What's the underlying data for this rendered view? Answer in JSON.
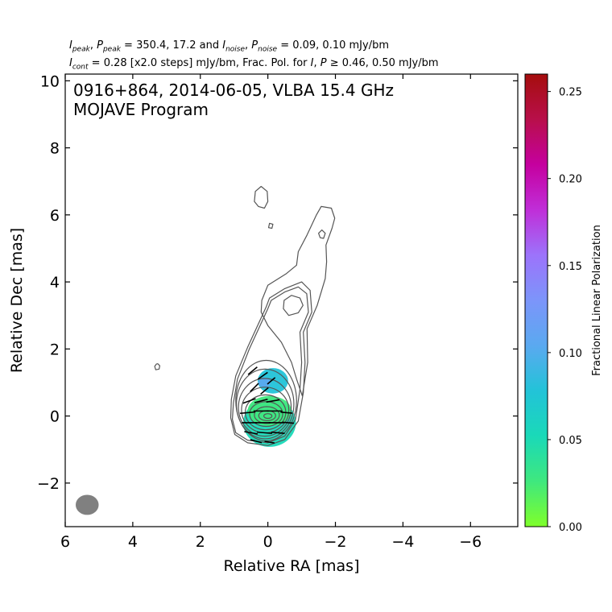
{
  "header": {
    "line1": {
      "peak_sym": "I",
      "peak_sub": "peak",
      "ppeak_sym": "P",
      "ppeak_sub": "peak",
      "peak_vals": " = 350.4, 17.2 and ",
      "noise_sym": "I",
      "noise_sub": "noise",
      "pnoise_sym": "P",
      "pnoise_sub": "noise",
      "noise_vals": " = 0.09, 0.10 mJy/bm"
    },
    "line2": {
      "cont_sym": "I",
      "cont_sub": "cont",
      "cont_text": " = 0.28 [x2.0 steps] mJy/bm, Frac. Pol. for ",
      "i_sym": "I",
      "p_sym": "P",
      "thresh_text": " ≥ 0.46, 0.50 mJy/bm"
    }
  },
  "chart_data": {
    "type": "contour",
    "title_line1": "0916+864, 2014-06-05, VLBA 15.4 GHz",
    "title_line2": "MOJAVE Program",
    "xlabel": "Relative RA [mas]",
    "ylabel": "Relative Dec [mas]",
    "xlim": [
      6.0,
      -7.4
    ],
    "ylim": [
      -3.3,
      10.2
    ],
    "xticks": [
      6,
      4,
      2,
      0,
      -2,
      -4,
      -6
    ],
    "xtick_labels": [
      "6",
      "4",
      "2",
      "0",
      "−2",
      "−4",
      "−6"
    ],
    "yticks": [
      -2,
      0,
      2,
      4,
      6,
      8,
      10
    ],
    "ytick_labels": [
      "−2",
      "0",
      "2",
      "4",
      "6",
      "8",
      "10"
    ],
    "colorbar": {
      "label": "Fractional Linear Polarization",
      "range": [
        0.0,
        0.26
      ],
      "ticks": [
        0.0,
        0.05,
        0.1,
        0.15,
        0.2,
        0.25
      ],
      "tick_labels": [
        "0.00",
        "0.05",
        "0.10",
        "0.15",
        "0.20",
        "0.25"
      ],
      "colormap": [
        "#7fff2a",
        "#3fe87e",
        "#1ad9b8",
        "#22c3d8",
        "#5aa9f0",
        "#7c95fa",
        "#9c73fb",
        "#c02ed8",
        "#c5009f",
        "#b80f4a",
        "#a50d0d"
      ]
    },
    "core_contours": [
      {
        "cx": 0.0,
        "cy": 0.0,
        "rx": 0.12,
        "ry": 0.07
      },
      {
        "cx": 0.02,
        "cy": 0.01,
        "rx": 0.25,
        "ry": 0.15
      },
      {
        "cx": 0.03,
        "cy": 0.03,
        "rx": 0.37,
        "ry": 0.25
      },
      {
        "cx": 0.05,
        "cy": 0.06,
        "rx": 0.49,
        "ry": 0.37
      },
      {
        "cx": 0.07,
        "cy": 0.11,
        "rx": 0.6,
        "ry": 0.52
      },
      {
        "cx": 0.08,
        "cy": 0.18,
        "rx": 0.7,
        "ry": 0.68
      },
      {
        "cx": 0.09,
        "cy": 0.26,
        "rx": 0.78,
        "ry": 0.86
      },
      {
        "cx": 0.08,
        "cy": 0.36,
        "rx": 0.85,
        "ry": 1.04
      },
      {
        "cx": 0.05,
        "cy": 0.46,
        "rx": 0.9,
        "ry": 1.2
      }
    ],
    "extended_contours": [
      [
        [
          0.98,
          -0.55
        ],
        [
          0.6,
          -0.8
        ],
        [
          0.0,
          -0.88
        ],
        [
          -0.5,
          -0.7
        ],
        [
          -0.9,
          -0.15
        ],
        [
          -1.05,
          0.7
        ],
        [
          -1.1,
          1.6
        ],
        [
          -1.05,
          2.5
        ],
        [
          -1.3,
          3.1
        ],
        [
          -1.25,
          3.75
        ],
        [
          -1.0,
          4.0
        ],
        [
          -0.5,
          3.8
        ],
        [
          -0.05,
          3.52
        ],
        [
          0.05,
          3.25
        ],
        [
          0.6,
          2.05
        ],
        [
          0.95,
          1.2
        ],
        [
          1.08,
          0.5
        ],
        [
          1.1,
          -0.05
        ]
      ],
      [
        [
          0.95,
          -0.5
        ],
        [
          0.6,
          -0.72
        ],
        [
          0.0,
          -0.8
        ],
        [
          -0.5,
          -0.6
        ],
        [
          -0.82,
          -0.1
        ],
        [
          -0.95,
          0.8
        ],
        [
          -1.0,
          1.6
        ],
        [
          -0.95,
          2.5
        ],
        [
          -1.2,
          3.1
        ],
        [
          -1.15,
          3.65
        ],
        [
          -0.9,
          3.85
        ],
        [
          -0.5,
          3.7
        ],
        [
          -0.1,
          3.45
        ],
        [
          0.0,
          3.2
        ],
        [
          0.55,
          2.0
        ],
        [
          0.9,
          1.1
        ],
        [
          1.02,
          0.4
        ],
        [
          1.05,
          -0.1
        ]
      ],
      [
        [
          -1.02,
          0.6
        ],
        [
          -1.18,
          1.6
        ],
        [
          -1.16,
          2.6
        ],
        [
          -1.46,
          3.3
        ],
        [
          -1.7,
          4.1
        ],
        [
          -1.74,
          4.6
        ],
        [
          -1.72,
          5.1
        ],
        [
          -1.9,
          5.6
        ],
        [
          -1.98,
          5.9
        ],
        [
          -1.88,
          6.2
        ],
        [
          -1.58,
          6.25
        ],
        [
          -1.44,
          6.0
        ],
        [
          -1.16,
          5.4
        ],
        [
          -0.9,
          4.9
        ],
        [
          -0.85,
          4.5
        ],
        [
          -0.55,
          4.25
        ],
        [
          0.0,
          3.9
        ],
        [
          0.18,
          3.45
        ],
        [
          0.2,
          3.1
        ],
        [
          0.0,
          2.7
        ],
        [
          -0.4,
          2.2
        ],
        [
          -0.7,
          1.6
        ],
        [
          -0.85,
          1.1
        ]
      ],
      [
        [
          -0.62,
          3.0
        ],
        [
          -0.9,
          3.08
        ],
        [
          -1.04,
          3.3
        ],
        [
          -0.95,
          3.52
        ],
        [
          -0.7,
          3.6
        ],
        [
          -0.48,
          3.45
        ],
        [
          -0.46,
          3.2
        ]
      ],
      [
        [
          0.28,
          6.25
        ],
        [
          0.4,
          6.4
        ],
        [
          0.37,
          6.7
        ],
        [
          0.2,
          6.85
        ],
        [
          0.02,
          6.7
        ],
        [
          0.0,
          6.4
        ],
        [
          0.1,
          6.2
        ]
      ],
      [
        [
          -0.05,
          5.75
        ],
        [
          -0.15,
          5.72
        ],
        [
          -0.12,
          5.6
        ],
        [
          -0.02,
          5.62
        ]
      ],
      [
        [
          -1.5,
          5.45
        ],
        [
          -1.6,
          5.55
        ],
        [
          -1.7,
          5.45
        ],
        [
          -1.65,
          5.3
        ],
        [
          -1.55,
          5.32
        ]
      ],
      [
        [
          3.3,
          1.55
        ],
        [
          3.35,
          1.48
        ],
        [
          3.32,
          1.38
        ],
        [
          3.22,
          1.4
        ],
        [
          3.2,
          1.5
        ],
        [
          3.26,
          1.56
        ]
      ]
    ],
    "polarization_regions": [
      {
        "cx": -0.05,
        "cy": -0.2,
        "rx": 0.78,
        "ry": 0.72,
        "frac": 0.06
      },
      {
        "cx": -0.05,
        "cy": 0.15,
        "rx": 0.65,
        "ry": 0.45,
        "frac": 0.03
      },
      {
        "cx": -0.15,
        "cy": 1.05,
        "rx": 0.45,
        "ry": 0.38,
        "frac": 0.07
      },
      {
        "cx": 0.1,
        "cy": 1.0,
        "rx": 0.18,
        "ry": 0.15,
        "frac": 0.1
      }
    ],
    "evpa_sticks": [
      {
        "x": 0.45,
        "y": 1.35,
        "len": 0.35,
        "ang": -40
      },
      {
        "x": 0.15,
        "y": 1.2,
        "len": 0.35,
        "ang": -35
      },
      {
        "x": -0.1,
        "y": 1.05,
        "len": 0.3,
        "ang": -40
      },
      {
        "x": 0.4,
        "y": 0.85,
        "len": 0.35,
        "ang": -45
      },
      {
        "x": 0.1,
        "y": 0.75,
        "len": 0.3,
        "ang": -40
      },
      {
        "x": 0.55,
        "y": 0.45,
        "len": 0.4,
        "ang": -20
      },
      {
        "x": 0.2,
        "y": 0.45,
        "len": 0.4,
        "ang": -15
      },
      {
        "x": -0.15,
        "y": 0.45,
        "len": 0.4,
        "ang": -10
      },
      {
        "x": 0.6,
        "y": 0.1,
        "len": 0.45,
        "ang": -5
      },
      {
        "x": 0.2,
        "y": 0.15,
        "len": 0.45,
        "ang": 0
      },
      {
        "x": -0.2,
        "y": 0.15,
        "len": 0.45,
        "ang": 0
      },
      {
        "x": -0.55,
        "y": 0.1,
        "len": 0.35,
        "ang": 5
      },
      {
        "x": 0.55,
        "y": -0.2,
        "len": 0.45,
        "ang": 0
      },
      {
        "x": 0.15,
        "y": -0.2,
        "len": 0.45,
        "ang": 0
      },
      {
        "x": -0.25,
        "y": -0.2,
        "len": 0.45,
        "ang": 0
      },
      {
        "x": -0.6,
        "y": -0.2,
        "len": 0.35,
        "ang": 5
      },
      {
        "x": 0.5,
        "y": -0.5,
        "len": 0.4,
        "ang": 10
      },
      {
        "x": 0.1,
        "y": -0.5,
        "len": 0.45,
        "ang": 5
      },
      {
        "x": -0.3,
        "y": -0.5,
        "len": 0.4,
        "ang": 5
      },
      {
        "x": 0.35,
        "y": -0.75,
        "len": 0.35,
        "ang": 15
      },
      {
        "x": -0.05,
        "y": -0.78,
        "len": 0.3,
        "ang": 10
      }
    ],
    "beam": {
      "x": 5.35,
      "y": -2.65,
      "major": 0.34,
      "minor": 0.3,
      "color": "#808080"
    },
    "contour_color": "#555555"
  }
}
